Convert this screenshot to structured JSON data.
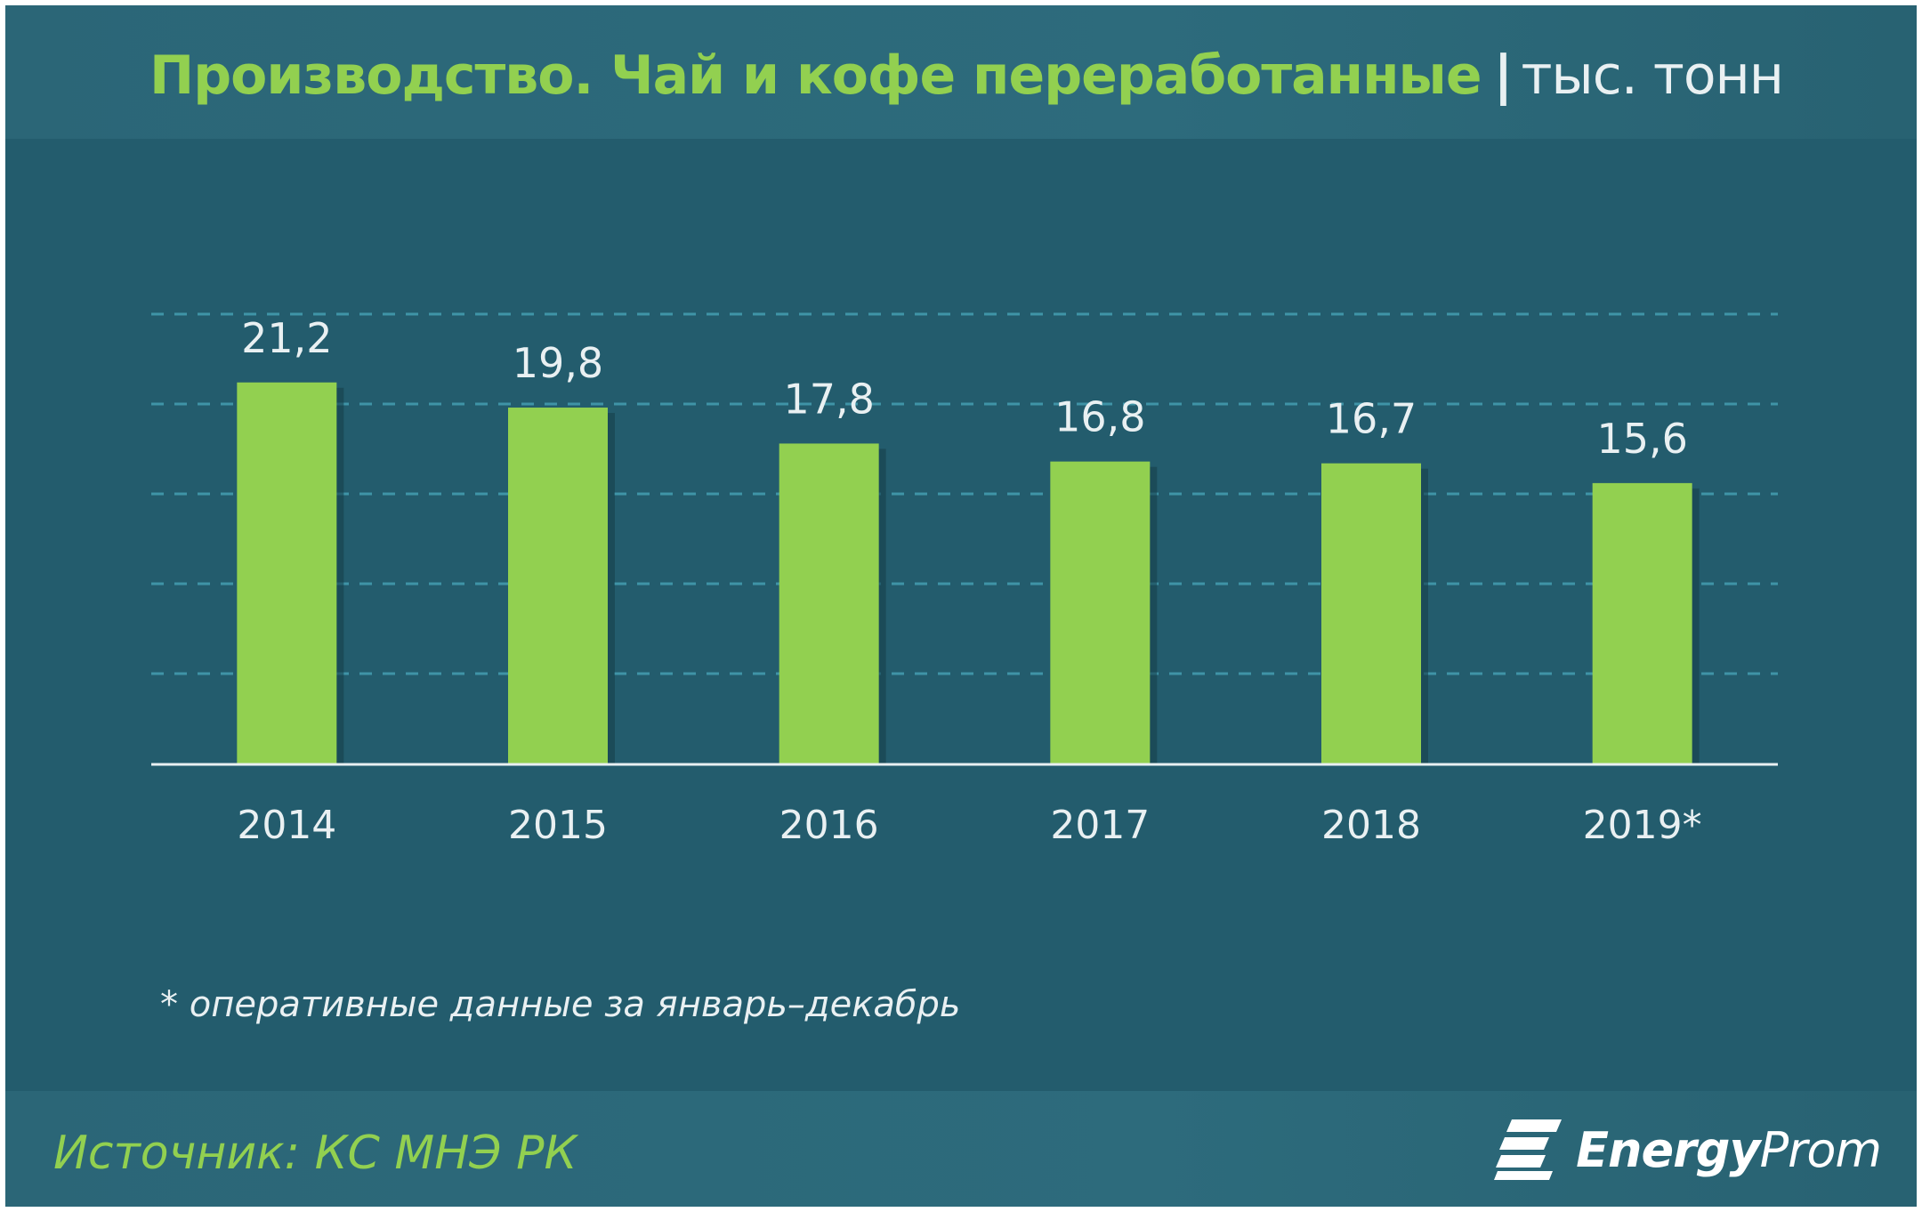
{
  "header": {
    "title": "Производство. Чай и кофе переработанные",
    "separator": "|",
    "unit": "тыс. тонн"
  },
  "chart_data": {
    "type": "bar",
    "categories": [
      "2014",
      "2015",
      "2016",
      "2017",
      "2018",
      "2019*"
    ],
    "values": [
      21.2,
      19.8,
      17.8,
      16.8,
      16.7,
      15.6
    ],
    "value_labels": [
      "21,2",
      "19,8",
      "17,8",
      "16,8",
      "16,7",
      "15,6"
    ],
    "title": "Производство. Чай и кофе переработанные",
    "ylabel": "тыс. тонн",
    "grid": true,
    "bar_color": "#92d050"
  },
  "footnote": "* оперативные данные за январь–декабрь",
  "footer": {
    "source": "Источник: КС МНЭ РК",
    "logo_bold": "Energy",
    "logo_light": "Prom"
  },
  "colors": {
    "background": "#235c6d",
    "header_band": "#2d6b7c",
    "accent_green": "#92d050",
    "gridline": "#3f94a7",
    "text_light": "#e9f0f2"
  }
}
